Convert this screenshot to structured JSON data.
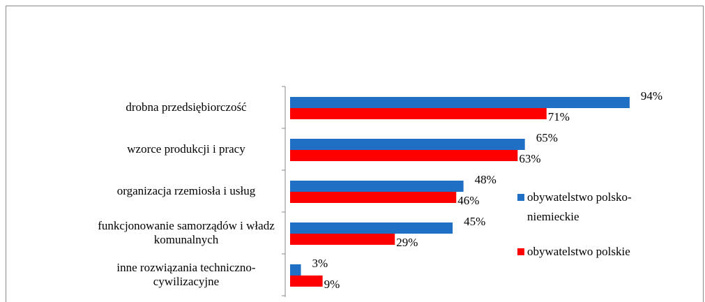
{
  "chart_data": {
    "type": "hbar",
    "categories": [
      "drobna przedsiębiorczość",
      "wzorce produkcji i pracy",
      "organizacja rzemiosła i usług",
      "funkcjonowanie samorządów i władz komunalnych",
      "inne rozwiązania techniczno-cywilizacyjne"
    ],
    "series": [
      {
        "name": "obywatelstwo polsko-niemieckie",
        "color": "#1f6fc5",
        "values": [
          94,
          65,
          48,
          45,
          3
        ],
        "value_labels": [
          "94%",
          "65%",
          "48%",
          "45%",
          "3%"
        ]
      },
      {
        "name": "obywatelstwo polskie",
        "color": "#ff0000",
        "values": [
          71,
          63,
          46,
          29,
          9
        ],
        "value_labels": [
          "71%",
          "63%",
          "46%",
          "29%",
          "9%"
        ]
      }
    ],
    "xlim": [
      0,
      100
    ],
    "legend": "right"
  }
}
